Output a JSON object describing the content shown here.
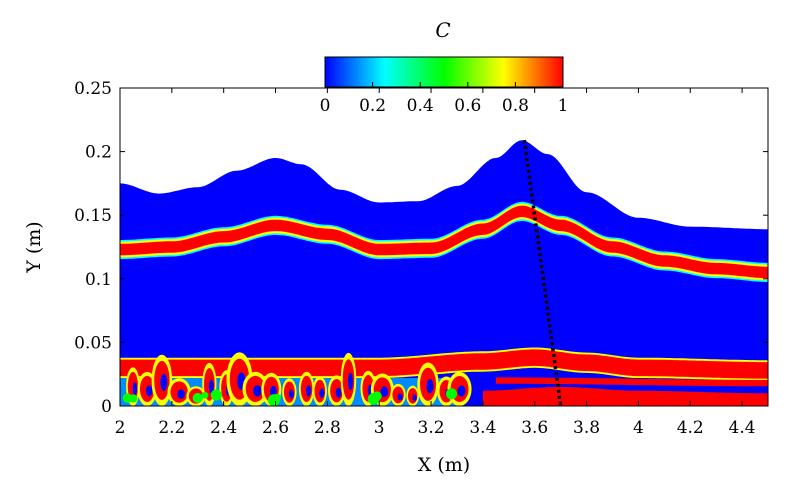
{
  "chart_data": {
    "type": "heatmap",
    "title": "",
    "xlabel": "X (m)",
    "ylabel": "Y (m)",
    "xlim": [
      2,
      4.5
    ],
    "ylim": [
      0,
      0.25
    ],
    "x_ticks": [
      2,
      2.2,
      2.4,
      2.6,
      2.8,
      3,
      3.2,
      3.4,
      3.6,
      3.8,
      4,
      4.2,
      4.4
    ],
    "x_tick_labels": [
      "2",
      "2.2",
      "2.4",
      "2.6",
      "2.8",
      "3",
      "3.2",
      "3.4",
      "3.6",
      "3.8",
      "4",
      "4.2",
      "4.4"
    ],
    "y_ticks": [
      0,
      0.05,
      0.1,
      0.15,
      0.2,
      0.25
    ],
    "y_tick_labels": [
      "0",
      "0.05",
      "0.1",
      "0.15",
      "0.2",
      "0.25"
    ],
    "colorbar": {
      "label": "C",
      "range": [
        0,
        1
      ],
      "ticks": [
        0,
        0.2,
        0.4,
        0.6,
        0.8,
        1
      ],
      "tick_labels": [
        "0",
        "0.2",
        "0.4",
        "0.6",
        "0.8",
        "1"
      ],
      "colormap": [
        "#0000ff",
        "#00ffff",
        "#00ff00",
        "#ffff00",
        "#ff0000"
      ]
    },
    "fields": {
      "free_surface": [
        [
          2.0,
          0.175
        ],
        [
          2.15,
          0.167
        ],
        [
          2.3,
          0.172
        ],
        [
          2.45,
          0.185
        ],
        [
          2.6,
          0.195
        ],
        [
          2.7,
          0.19
        ],
        [
          2.85,
          0.17
        ],
        [
          3.0,
          0.16
        ],
        [
          3.15,
          0.161
        ],
        [
          3.3,
          0.173
        ],
        [
          3.45,
          0.195
        ],
        [
          3.55,
          0.209
        ],
        [
          3.65,
          0.198
        ],
        [
          3.8,
          0.168
        ],
        [
          4.0,
          0.148
        ],
        [
          4.2,
          0.141
        ],
        [
          4.5,
          0.139
        ]
      ],
      "upper_band_center": [
        [
          2.0,
          0.123
        ],
        [
          2.2,
          0.125
        ],
        [
          2.4,
          0.133
        ],
        [
          2.6,
          0.142
        ],
        [
          2.8,
          0.135
        ],
        [
          3.0,
          0.123
        ],
        [
          3.2,
          0.124
        ],
        [
          3.4,
          0.139
        ],
        [
          3.55,
          0.153
        ],
        [
          3.7,
          0.142
        ],
        [
          3.9,
          0.125
        ],
        [
          4.1,
          0.114
        ],
        [
          4.3,
          0.108
        ],
        [
          4.5,
          0.105
        ]
      ],
      "lower_band_center": [
        [
          2.0,
          0.03
        ],
        [
          2.5,
          0.03
        ],
        [
          3.0,
          0.03
        ],
        [
          3.4,
          0.035
        ],
        [
          3.6,
          0.038
        ],
        [
          3.8,
          0.034
        ],
        [
          4.0,
          0.03
        ],
        [
          4.5,
          0.028
        ]
      ],
      "bottom_layer_top": [
        [
          3.4,
          0.012
        ],
        [
          3.7,
          0.015
        ],
        [
          4.0,
          0.012
        ],
        [
          4.5,
          0.01
        ]
      ],
      "mixing_region_x": [
        2.0,
        3.3
      ]
    },
    "marker_line": [
      [
        3.56,
        0.209
      ],
      [
        3.7,
        0.0
      ]
    ],
    "marker_line_style": "dotted black"
  }
}
